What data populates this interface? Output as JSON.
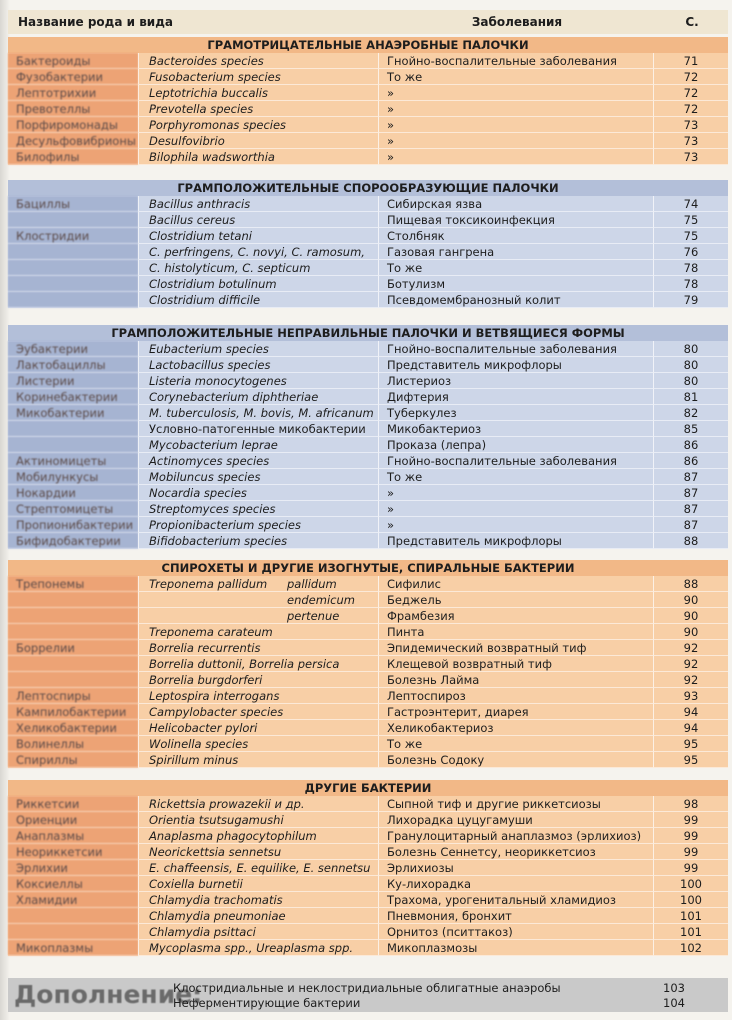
{
  "header": {
    "columns": [
      "Название рода и вида",
      "Заболевания",
      "С."
    ]
  },
  "sections": [
    {
      "title": "ГРАМОТРИЦАТЕЛЬНЫЕ АНАЭРОБНЫЕ ПАЛОЧКИ",
      "rows": [
        {
          "genus": "Бактероиды",
          "species": "Bacteroides species",
          "disease": "Гнойно-воспалительные заболевания",
          "page": 71
        },
        {
          "genus": "Фузобактерии",
          "species": "Fusobacterium species",
          "disease": "То же",
          "page": 72
        },
        {
          "genus": "Лептотрихии",
          "species": "Leptotrichia buccalis",
          "disease": "»",
          "page": 72
        },
        {
          "genus": "Превотеллы",
          "species": "Prevotella species",
          "disease": "»",
          "page": 72
        },
        {
          "genus": "Порфиромонады",
          "species": "Porphyromonas species",
          "disease": "»",
          "page": 73
        },
        {
          "genus": "Десульфовибрионы",
          "species": "Desulfovibrio",
          "disease": "»",
          "page": 73
        },
        {
          "genus": "Билофилы",
          "species": "Bilophila wadsworthia",
          "disease": "»",
          "page": 73
        }
      ]
    },
    {
      "title": "ГРАМПОЛОЖИТЕЛЬНЫЕ СПОРООБРАЗУЮЩИЕ ПАЛОЧКИ",
      "rows": [
        {
          "genus": "Бациллы",
          "species": "Bacillus anthracis",
          "disease": "Сибирская язва",
          "page": 74
        },
        {
          "species": "Bacillus cereus",
          "disease": "Пищевая токсикоинфекция",
          "page": 75
        },
        {
          "genus": "Клостридии",
          "species": "Clostridium tetani",
          "disease": "Столбняк",
          "page": 75
        },
        {
          "species": "C. perfringens, C. novyi, C. ramosum,",
          "disease": "Газовая гангрена",
          "page": 76
        },
        {
          "species": "C. histolyticum, C. septicum",
          "disease": "То же",
          "page": 78
        },
        {
          "species": "Clostridium botulinum",
          "disease": "Ботулизм",
          "page": 78
        },
        {
          "species": "Clostridium difficile",
          "disease": "Псевдомембранозный колит",
          "page": 79
        }
      ]
    },
    {
      "title": "ГРАМПОЛОЖИТЕЛЬНЫЕ НЕПРАВИЛЬНЫЕ ПАЛОЧКИ И ВЕТВЯЩИЕСЯ ФОРМЫ",
      "rows": [
        {
          "genus": "Эубактерии",
          "species": "Eubacterium species",
          "disease": "Гнойно-воспалительные заболевания",
          "page": 80
        },
        {
          "genus": "Лактобациллы",
          "species": "Lactobacillus species",
          "disease": "Представитель микрофлоры",
          "page": 80
        },
        {
          "genus": "Листерии",
          "species": "Listeria monocytogenes",
          "disease": "Листериоз",
          "page": 80
        },
        {
          "genus": "Коринебактерии",
          "species": "Corynebacterium diphtheriae",
          "disease": "Дифтерия",
          "page": 81
        },
        {
          "genus": "Микобактерии",
          "species": "M. tuberculosis, M. bovis, M. africanum",
          "disease": "Туберкулез",
          "page": 82
        },
        {
          "species": "Условно-патогенные микобактерии",
          "disease": "Микобактериоз",
          "page": 85
        },
        {
          "species": "Mycobacterium leprae",
          "disease": "Проказа (лепра)",
          "page": 86
        },
        {
          "genus": "Актиномицеты",
          "species": "Actinomyces species",
          "disease": "Гнойно-воспалительные заболевания",
          "page": 86
        },
        {
          "genus": "Мобилункусы",
          "species": "Mobiluncus species",
          "disease": "То же",
          "page": 87
        },
        {
          "genus": "Нокардии",
          "species": "Nocardia species",
          "disease": "»",
          "page": 87
        },
        {
          "genus": "Стрептомицеты",
          "species": "Streptomyces species",
          "disease": "»",
          "page": 87
        },
        {
          "genus": "Пропионибактерии",
          "species": "Propionibacterium species",
          "disease": "»",
          "page": 87
        },
        {
          "genus": "Бифидобактерии",
          "species": "Bifidobacterium species",
          "disease": "Представитель микрофлоры",
          "page": 88
        }
      ]
    },
    {
      "title": "СПИРОХЕТЫ И ДРУГИЕ ИЗОГНУТЫЕ, СПИРАЛЬНЫЕ БАКТЕРИИ",
      "rows": [
        {
          "genus": "Трепонемы",
          "species": "Treponema pallidum",
          "subspecies": "pallidum",
          "disease": "Сифилис",
          "page": 88
        },
        {
          "subspecies": "endemicum",
          "disease": "Беджель",
          "page": 90
        },
        {
          "subspecies": "pertenue",
          "disease": "Фрамбезия",
          "page": 90
        },
        {
          "species": "Treponema carateum",
          "disease": "Пинта",
          "page": 90
        },
        {
          "genus": "Боррелии",
          "species": "Borrelia recurrentis",
          "disease": "Эпидемический возвратный тиф",
          "page": 92
        },
        {
          "species": "Borrelia duttonii, Borrelia persica",
          "disease": "Клещевой возвратный тиф",
          "page": 92
        },
        {
          "species": "Borrelia burgdorferi",
          "disease": "Болезнь Лайма",
          "page": 92
        },
        {
          "genus": "Лептоспиры",
          "species": "Leptospira interrogans",
          "disease": "Лептоспироз",
          "page": 93
        },
        {
          "genus": "Кампилобактерии",
          "species": "Campylobacter species",
          "disease": "Гастроэнтерит, диарея",
          "page": 94
        },
        {
          "genus": "Хеликобактерии",
          "species": "Helicobacter pylori",
          "disease": "Хеликобактериоз",
          "page": 94
        },
        {
          "genus": "Волинеллы",
          "species": "Wolinella species",
          "disease": "То же",
          "page": 95
        },
        {
          "genus": "Спириллы",
          "species": "Spirillum minus",
          "disease": "Болезнь Содоку",
          "page": 95
        }
      ]
    },
    {
      "title": "ДРУГИЕ БАКТЕРИИ",
      "rows": [
        {
          "genus": "Риккетсии",
          "species": "Rickettsia prowazekii и др.",
          "disease": "Сыпной тиф и другие риккетсиозы",
          "page": 98
        },
        {
          "genus": "Ориенции",
          "species": "Orientia tsutsugamushi",
          "disease": "Лихорадка цуцугамуши",
          "page": 99
        },
        {
          "genus": "Анаплазмы",
          "species": "Anaplasma phagocytophilum",
          "disease": "Гранулоцитарный анаплазмоз (эрлихиоз)",
          "page": 99
        },
        {
          "genus": "Неориккетсии",
          "species": "Neorickettsia sennetsu",
          "disease": "Болезнь Сеннетсу, неориккетсиоз",
          "page": 99
        },
        {
          "genus": "Эрлихии",
          "species": "E. chaffeensis, E. equilike, E. sennetsu",
          "disease": "Эрлихиозы",
          "page": 99
        },
        {
          "genus": "Коксиеллы",
          "species": "Coxiella burnetii",
          "disease": "Ку-лихорадка",
          "page": 100
        },
        {
          "genus": "Хламидии",
          "species": "Chlamydia trachomatis",
          "disease": "Трахома, урогенитальный хламидиоз",
          "page": 100
        },
        {
          "species": "Chlamydia pneumoniae",
          "disease": "Пневмония, бронхит",
          "page": 101
        },
        {
          "species": "Chlamydia psittaci",
          "disease": "Орнитоз (пситтакоз)",
          "page": 101
        },
        {
          "genus": "Микоплазмы",
          "species": "Mycoplasma spp., Ureaplasma spp.",
          "disease": "Микоплазмозы",
          "page": 102
        }
      ]
    }
  ],
  "footer": {
    "title": "Дополнение:",
    "items": [
      {
        "text": "Клостридиальные и неклостридиальные облигатные анаэробы",
        "page": 103
      },
      {
        "text": "Неферментирующие бактерии",
        "page": 104
      }
    ]
  }
}
